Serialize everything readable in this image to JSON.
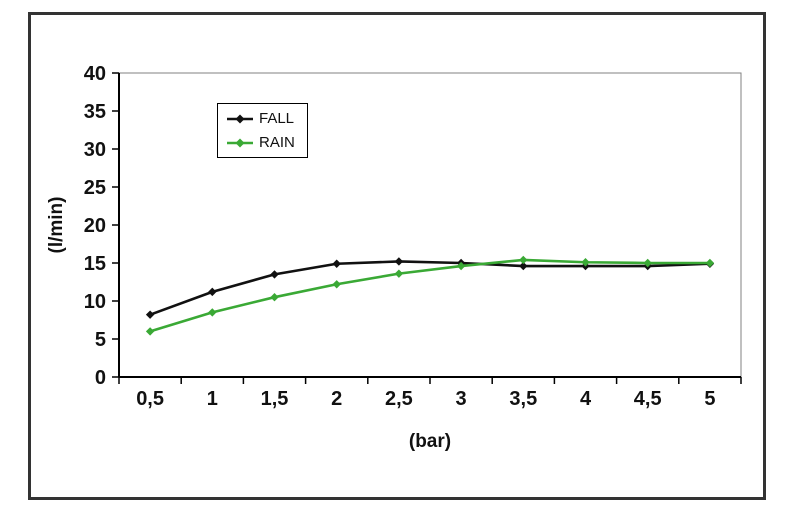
{
  "chart_data": {
    "type": "line",
    "title": "",
    "xlabel": "(bar)",
    "ylabel": "(l/min)",
    "x": [
      0.5,
      1,
      1.5,
      2,
      2.5,
      3,
      3.5,
      4,
      4.5,
      5
    ],
    "x_tick_labels": [
      "0,5",
      "1",
      "1,5",
      "2",
      "2,5",
      "3",
      "3,5",
      "4",
      "4,5",
      "5"
    ],
    "ylim": [
      0,
      40
    ],
    "ytick_step": 5,
    "grid": false,
    "legend_position": "top-left-inside",
    "plot_border_color": "#808080",
    "axis_color": "#000000",
    "series": [
      {
        "name": "FALL",
        "color": "#111111",
        "values": [
          8.2,
          11.2,
          13.5,
          14.9,
          15.2,
          15.0,
          14.6,
          14.6,
          14.6,
          14.9
        ]
      },
      {
        "name": "RAIN",
        "color": "#3aa935",
        "values": [
          6.0,
          8.5,
          10.5,
          12.2,
          13.6,
          14.6,
          15.4,
          15.1,
          15.0,
          15.0
        ]
      }
    ]
  }
}
